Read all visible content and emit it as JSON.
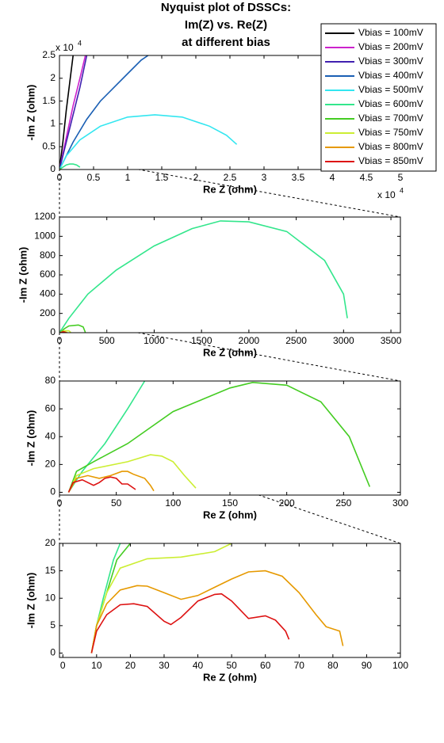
{
  "chart_data": [
    {
      "type": "line",
      "title_lines": [
        "Nyquist plot of DSSCs:",
        "Im(Z) vs. Re(Z)",
        "at different bias"
      ],
      "x_label": "Re Z (ohm)",
      "y_label": "-Im Z (ohm)",
      "x_multiplier": "x 10",
      "x_multiplier_exp": "4",
      "y_multiplier": "x 10",
      "y_multiplier_exp": "4",
      "xlim": [
        0,
        5
      ],
      "ylim": [
        0,
        2.5
      ],
      "xticks": [
        0,
        0.5,
        1,
        1.5,
        2,
        2.5,
        3,
        3.5,
        4,
        4.5,
        5
      ],
      "yticks": [
        0,
        0.5,
        1,
        1.5,
        2,
        2.5
      ],
      "series": [
        {
          "name": "Vbias = 100mV",
          "color": "#000000",
          "x": [
            0,
            0.05,
            0.1,
            0.15,
            0.2
          ],
          "values": [
            0,
            0.6,
            1.3,
            1.9,
            2.5
          ]
        },
        {
          "name": "Vbias = 200mV",
          "color": "#cc22cc",
          "x": [
            0,
            0.1,
            0.2,
            0.3,
            0.38
          ],
          "values": [
            0,
            0.7,
            1.4,
            2.0,
            2.5
          ]
        },
        {
          "name": "Vbias = 300mV",
          "color": "#4020b0",
          "x": [
            0,
            0.1,
            0.2,
            0.3,
            0.4
          ],
          "values": [
            0,
            0.6,
            1.2,
            1.8,
            2.5
          ]
        },
        {
          "name": "Vbias = 400mV",
          "color": "#1a5fb4",
          "x": [
            0,
            0.2,
            0.4,
            0.6,
            0.8,
            1.0,
            1.2,
            1.3
          ],
          "values": [
            0,
            0.6,
            1.1,
            1.5,
            1.8,
            2.1,
            2.4,
            2.5
          ]
        },
        {
          "name": "Vbias = 500mV",
          "color": "#33e6f0",
          "x": [
            0,
            0.1,
            0.3,
            0.6,
            1.0,
            1.4,
            1.8,
            2.2,
            2.45,
            2.6
          ],
          "values": [
            0,
            0.3,
            0.65,
            0.95,
            1.15,
            1.2,
            1.15,
            0.95,
            0.75,
            0.55
          ]
        },
        {
          "name": "Vbias = 600mV",
          "color": "#33e68c",
          "x": [
            0,
            0.05,
            0.1,
            0.15,
            0.2,
            0.25,
            0.3
          ],
          "values": [
            0,
            0.05,
            0.1,
            0.12,
            0.12,
            0.1,
            0.05
          ]
        },
        {
          "name": "Vbias = 700mV",
          "color": "#44cc22",
          "x": [
            0.001,
            0.01,
            0.02,
            0.027
          ],
          "values": [
            0,
            0.007,
            0.007,
            0.001
          ]
        },
        {
          "name": "Vbias = 750mV",
          "color": "#ccee33",
          "x": [
            0.001,
            0.005,
            0.012
          ],
          "values": [
            0,
            0.002,
            0
          ]
        },
        {
          "name": "Vbias = 800mV",
          "color": "#e69900",
          "x": [
            0.001,
            0.005,
            0.008
          ],
          "values": [
            0,
            0.001,
            0
          ]
        },
        {
          "name": "Vbias = 850mV",
          "color": "#dd1111",
          "x": [
            0.001,
            0.004,
            0.007
          ],
          "values": [
            0,
            0.001,
            0
          ]
        }
      ]
    },
    {
      "type": "line",
      "x_label": "Re Z (ohm)",
      "y_label": "-Im Z (ohm)",
      "xlim": [
        0,
        3600
      ],
      "ylim": [
        0,
        1200
      ],
      "xticks": [
        0,
        500,
        1000,
        1500,
        2000,
        2500,
        3000,
        3500
      ],
      "yticks": [
        0,
        200,
        400,
        600,
        800,
        1000,
        1200
      ],
      "series": [
        {
          "color": "#33e68c",
          "x": [
            0,
            100,
            300,
            600,
            1000,
            1400,
            1700,
            2000,
            2400,
            2800,
            3000,
            3040
          ],
          "values": [
            0,
            150,
            400,
            650,
            900,
            1080,
            1160,
            1150,
            1050,
            750,
            400,
            150
          ]
        },
        {
          "color": "#44cc22",
          "x": [
            8,
            50,
            100,
            200,
            250,
            273
          ],
          "values": [
            0,
            40,
            70,
            80,
            60,
            4
          ]
        },
        {
          "color": "#ccee33",
          "x": [
            8,
            50,
            100,
            120
          ],
          "values": [
            0,
            20,
            20,
            3
          ]
        },
        {
          "color": "#e69900",
          "x": [
            8,
            40,
            83
          ],
          "values": [
            0,
            12,
            1
          ]
        },
        {
          "color": "#dd1111",
          "x": [
            8,
            40,
            67
          ],
          "values": [
            0,
            10,
            2
          ]
        }
      ]
    },
    {
      "type": "line",
      "x_label": "Re Z (ohm)",
      "y_label": "-Im Z (ohm)",
      "xlim": [
        0,
        300
      ],
      "ylim": [
        -2,
        80
      ],
      "xticks": [
        0,
        50,
        100,
        150,
        200,
        250,
        300
      ],
      "yticks": [
        0,
        20,
        40,
        60,
        80
      ],
      "series": [
        {
          "color": "#33e68c",
          "x": [
            8,
            20,
            40,
            60,
            75
          ],
          "values": [
            0,
            15,
            35,
            60,
            80
          ]
        },
        {
          "color": "#44cc22",
          "x": [
            8,
            15,
            30,
            60,
            100,
            150,
            170,
            200,
            230,
            255,
            270,
            273
          ],
          "values": [
            0,
            15,
            22,
            35,
            58,
            75,
            79,
            77,
            65,
            40,
            10,
            4
          ]
        },
        {
          "color": "#ccee33",
          "x": [
            8,
            15,
            30,
            60,
            80,
            90,
            100,
            110,
            120
          ],
          "values": [
            0,
            12,
            17,
            22,
            27,
            26,
            22,
            12,
            3
          ]
        },
        {
          "color": "#e69900",
          "x": [
            8,
            15,
            25,
            35,
            45,
            55,
            60,
            65,
            75,
            80,
            83
          ],
          "values": [
            0,
            10,
            12,
            10,
            12,
            15,
            15,
            13,
            10,
            5,
            1
          ]
        },
        {
          "color": "#dd1111",
          "x": [
            8,
            12,
            20,
            25,
            30,
            35,
            40,
            45,
            50,
            55,
            60,
            67
          ],
          "values": [
            0,
            7,
            9,
            7,
            5,
            7,
            10,
            11,
            10,
            6,
            6,
            2
          ]
        }
      ]
    },
    {
      "type": "line",
      "x_label": "Re Z (ohm)",
      "y_label": "-Im Z (ohm)",
      "xlim": [
        -1,
        100
      ],
      "ylim": [
        -0.8,
        20
      ],
      "xticks": [
        0,
        10,
        20,
        30,
        40,
        50,
        60,
        70,
        80,
        90,
        100
      ],
      "yticks": [
        0,
        5,
        10,
        15,
        20
      ],
      "series": [
        {
          "color": "#33e68c",
          "x": [
            8.5,
            10,
            12,
            15,
            17
          ],
          "values": [
            0,
            5,
            10,
            17,
            20
          ]
        },
        {
          "color": "#44cc22",
          "x": [
            8.5,
            10,
            13,
            16,
            20
          ],
          "values": [
            0,
            5,
            11,
            17,
            20
          ]
        },
        {
          "color": "#ccee33",
          "x": [
            8.5,
            10,
            13,
            17,
            25,
            35,
            45,
            50
          ],
          "values": [
            0,
            5,
            11,
            15.5,
            17.2,
            17.5,
            18.5,
            20
          ]
        },
        {
          "color": "#e69900",
          "x": [
            8.5,
            10,
            13,
            17,
            22,
            25,
            30,
            35,
            40,
            45,
            50,
            55,
            60,
            65,
            70,
            75,
            78,
            82,
            83
          ],
          "values": [
            0,
            5,
            9,
            11.5,
            12.3,
            12.2,
            11,
            9.8,
            10.5,
            12,
            13.5,
            14.8,
            15,
            14,
            11,
            7,
            4.8,
            4,
            1.3
          ]
        },
        {
          "color": "#dd1111",
          "x": [
            8.5,
            10,
            13,
            17,
            21,
            25,
            30,
            32,
            35,
            40,
            45,
            47,
            50,
            55,
            60,
            63,
            66,
            67
          ],
          "values": [
            0,
            4,
            7,
            8.8,
            9,
            8.5,
            5.8,
            5.2,
            6.5,
            9.5,
            10.7,
            10.8,
            9.5,
            6.3,
            6.8,
            6,
            4,
            2.5
          ]
        }
      ]
    }
  ]
}
